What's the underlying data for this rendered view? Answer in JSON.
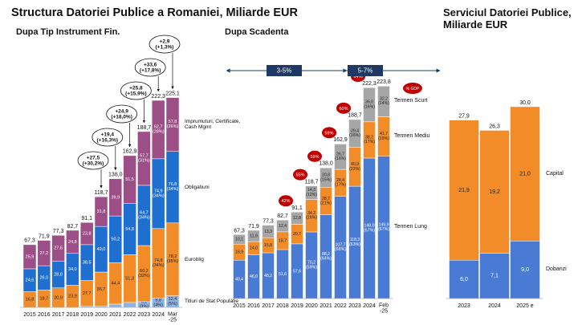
{
  "header": {
    "title": "Structura Datoriei Publice a Romaniei, Miliarde EUR"
  },
  "chart_data": [
    {
      "type": "bar",
      "stacked": true,
      "subtitle": "Dupa Tip Instrument Fin.",
      "categories": [
        "2015",
        "2016",
        "2017",
        "2018",
        "2019",
        "2020",
        "2021",
        "2022",
        "2023",
        "2024",
        "Mar -25"
      ],
      "ylim": [
        0,
        230
      ],
      "series": [
        {
          "name": "Titluri de Stat Populatie",
          "color": "#8fb4e3",
          "values": [
            0,
            0,
            0,
            0,
            1.1,
            1.2,
            3.5,
            5.3,
            6.1,
            9.8,
            12.4
          ],
          "value_labels": [
            null,
            null,
            null,
            null,
            null,
            null,
            null,
            null,
            "6,1 (3%)",
            "9,8 (4%)",
            "12,4 (5%)"
          ]
        },
        {
          "name": "Euroblig",
          "color": "#f28c28",
          "values": [
            16.8,
            18.7,
            20.9,
            23.9,
            27.7,
            36.7,
            44.4,
            51.3,
            60.2,
            74.8,
            78.2
          ],
          "value_labels": [
            "16,8",
            "18,7",
            "20,9",
            "23,9",
            "27,7",
            "36,7",
            "44,4",
            "51,3",
            "60,2 (32%)",
            "74,8 (34%)",
            "78,2 (35%)"
          ]
        },
        {
          "name": "Obligatiuni",
          "color": "#1f6fd0",
          "values": [
            24.6,
            26.0,
            28.8,
            34.0,
            38.5,
            49.0,
            50.2,
            54.8,
            64.7,
            74.9,
            76.8
          ],
          "value_labels": [
            "24,6",
            "26,0",
            "28,8",
            "34,0",
            "38,5",
            "49,0",
            "50,2",
            "54,8",
            "64,7 (34%)",
            "74,9 (34%)",
            "76,8 (34%)"
          ]
        },
        {
          "name": "Imprumuturi, Certificate, Cash Mgmt",
          "color": "#9b4f86",
          "values": [
            25.9,
            27.2,
            27.6,
            24.8,
            23.8,
            31.8,
            39.9,
            51.5,
            57.7,
            62.7,
            57.8
          ],
          "value_labels": [
            "25,9",
            "27,2",
            "27,6",
            "24,8",
            "23,8",
            "31,8",
            "39,9",
            "51,5",
            "57,7 (31%)",
            "62,7 (28%)",
            "57,8 (26%)"
          ]
        }
      ],
      "totals": [
        67.3,
        71.9,
        77.3,
        82.7,
        91.1,
        118.7,
        138.0,
        162.9,
        188.7,
        222.3,
        225.1
      ],
      "total_labels": [
        "67,3",
        "71,9",
        "77,3",
        "82,7",
        "91,1",
        "118,7",
        "138,0",
        "162,9",
        "188,7",
        "222,3",
        "225,1"
      ],
      "growth_labels": [
        null,
        null,
        null,
        null,
        null,
        "+27,5 (+30,2%)",
        "+19,4 (+16,3%)",
        "+24,9 (+18,0%)",
        "+25,8 (+15,9%)",
        "+33,6 (+17,8%)",
        "+2,9 (+1,3%)"
      ]
    },
    {
      "type": "bar",
      "stacked": true,
      "subtitle": "Dupa Scadenta",
      "categories": [
        "2015",
        "2016",
        "2017",
        "2018",
        "2019",
        "2020",
        "2021",
        "2022",
        "2023",
        "2024",
        "Feb -25"
      ],
      "ylim": [
        0,
        230
      ],
      "series": [
        {
          "name": "Termen Lung",
          "color": "#4a7bd4",
          "values": [
            40.4,
            46.0,
            48.2,
            51.6,
            57.6,
            70.2,
            88.2,
            107.7,
            118.3,
            148.0,
            149.9
          ],
          "value_labels": [
            "40,4",
            "46,0",
            "48,2",
            "51,6",
            "57,6",
            "70,2 (59%)",
            "88,2 (64%)",
            "107,7 (66%)",
            "118,3 (63%)",
            "148,0 (67%)",
            "149,9 (67%)"
          ]
        },
        {
          "name": "Termen Mediu",
          "color": "#f28c28",
          "values": [
            16.9,
            14.0,
            15.8,
            18.7,
            20.7,
            34.2,
            28.7,
            28.4,
            40.9,
            38.2,
            41.7
          ],
          "value_labels": [
            "16,9",
            "14,0",
            "15,8",
            "18,7",
            "20,7",
            "34,2 (29%)",
            "28,7 (21%)",
            "28,4 (17%)",
            "40,9 (22%)",
            "38,2 (17%)",
            "41,7 (19%)"
          ]
        },
        {
          "name": "Termen Scurt",
          "color": "#a6a6a6",
          "values": [
            10.1,
            11.9,
            13.3,
            12.4,
            12.8,
            14.3,
            20.8,
            26.7,
            29.4,
            36.0,
            32.2
          ],
          "value_labels": [
            "10,1",
            "11,9",
            "13,3",
            "12,4",
            "12,8",
            "14,3 (12%)",
            "20,8 (15%)",
            "26,7 (16%)",
            "29,4 (16%)",
            "36,0 (16%)",
            "32,2 (14%)"
          ]
        }
      ],
      "totals": [
        67.3,
        71.9,
        77.3,
        82.7,
        91.1,
        118.7,
        138.0,
        162.9,
        188.7,
        222.3,
        223.8
      ],
      "total_labels": [
        "67,3",
        "71,9",
        "77,3",
        "82,7",
        "91,1",
        "118,7",
        "138,0",
        "162,9",
        "188,7",
        "222,3",
        "223,8"
      ],
      "gdp_pct": [
        null,
        null,
        null,
        null,
        42,
        55,
        59,
        59,
        60,
        64,
        null
      ],
      "gdp_labels": [
        null,
        null,
        null,
        null,
        "42%",
        "55%",
        "59%",
        "59%",
        "60%",
        "64%",
        null
      ],
      "gdp_legend": "% GDP",
      "ranges": [
        "3-5%",
        "5-7%"
      ]
    },
    {
      "type": "bar",
      "stacked": true,
      "title": "Serviciul Datoriei Publice, Miliarde EUR",
      "categories": [
        "2023",
        "2024",
        "2025 e"
      ],
      "ylim": [
        0,
        32
      ],
      "series": [
        {
          "name": "Dobanzi",
          "color": "#4a7bd4",
          "values": [
            6.0,
            7.1,
            9.0
          ],
          "value_labels": [
            "6,0",
            "7,1",
            "9,0"
          ]
        },
        {
          "name": "Capital",
          "color": "#f28c28",
          "values": [
            21.9,
            19.2,
            21.0
          ],
          "value_labels": [
            "21,9",
            "19,2",
            "21,0"
          ]
        }
      ],
      "totals": [
        27.9,
        26.3,
        30.0
      ],
      "total_labels": [
        "27,9",
        "26,3",
        "30,0"
      ]
    }
  ]
}
